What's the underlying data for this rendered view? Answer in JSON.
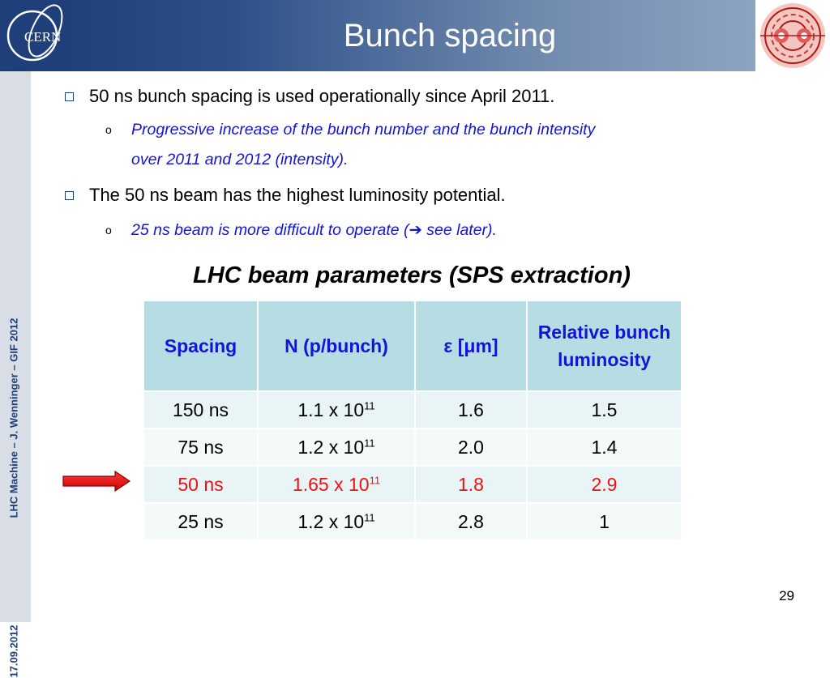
{
  "header": {
    "title": "Bunch spacing",
    "logo_text": "CERN"
  },
  "sidebar": {
    "footer_left": "LHC Machine  –  J. Wenninger – GIF 2012",
    "date": "17.09.2012"
  },
  "bullets": [
    {
      "text": "50 ns bunch spacing is used operationally since April 2011.",
      "subs": [
        "Progressive increase of the bunch number and the bunch intensity",
        "over 2011 and 2012 (intensity)."
      ]
    },
    {
      "text": "The 50 ns beam has the highest luminosity potential.",
      "subs": [
        "25 ns beam is more difficult to operate (",
        " see later)."
      ]
    }
  ],
  "arrow_glyph": "➔",
  "table": {
    "title": "LHC beam parameters (SPS extraction)",
    "headers": [
      "Spacing",
      "N (p/bunch)",
      "ε [μm]",
      "Relative bunch luminosity"
    ],
    "rows": [
      [
        "150 ns",
        "1.1 x 10",
        "11",
        "1.6",
        "1.5"
      ],
      [
        "75 ns",
        "1.2 x 10",
        "11",
        "2.0",
        "1.4"
      ],
      [
        "50 ns",
        "1.65 x 10",
        "11",
        "1.8",
        "2.9"
      ],
      [
        "25 ns",
        "1.2 x 10",
        "11",
        "2.8",
        "1"
      ]
    ]
  },
  "colors": {
    "header_dark": "#1b3a72",
    "text_blue": "#1414d6",
    "highlight_red": "#ee1111",
    "table_header_bg": "#b7dde4"
  },
  "icons": {
    "logo_left": "cern-logo",
    "logo_right": "lhc-logo",
    "bullet": "square-bullet-icon",
    "pointer": "red-arrow-icon"
  },
  "page_number": "29"
}
